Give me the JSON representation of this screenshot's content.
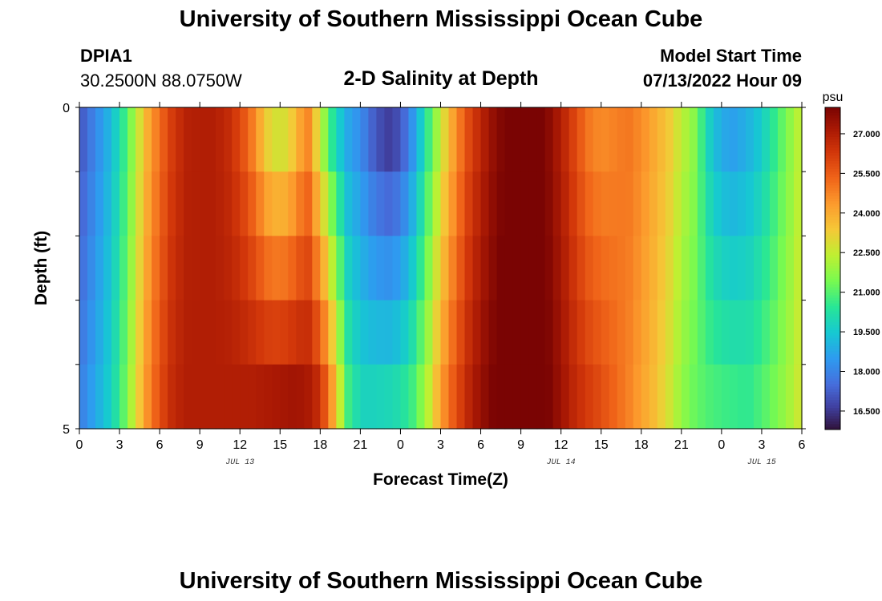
{
  "page": {
    "title": "University of Southern Mississippi Ocean Cube",
    "footer_title": "University of Southern Mississippi Ocean Cube",
    "station_id": "DPIA1",
    "station_coords": "30.2500N  88.0750W",
    "plot_subtitle": "2-D Salinity at Depth",
    "model_start_label": "Model Start Time",
    "model_start_value": "07/13/2022 Hour 09"
  },
  "chart_data": {
    "type": "heatmap",
    "title": "2-D Salinity at Depth",
    "xlabel": "Forecast Time(Z)",
    "ylabel": "Depth (ft)",
    "x_tick_labels": [
      "0",
      "3",
      "6",
      "9",
      "12",
      "15",
      "18",
      "21",
      "0",
      "3",
      "6",
      "9",
      "12",
      "15",
      "18",
      "21",
      "0",
      "3",
      "6"
    ],
    "x_range_hours": [
      0,
      54
    ],
    "day_labels": [
      {
        "label": "JUL 13",
        "hour": 12
      },
      {
        "label": "JUL 14",
        "hour": 36
      },
      {
        "label": "JUL 15",
        "hour": 51
      }
    ],
    "y_tick_labels": [
      {
        "depth": 0,
        "label": "0"
      },
      {
        "depth": 5,
        "label": "5"
      }
    ],
    "y_range": [
      0,
      5
    ],
    "depth_layers": 5,
    "colorbar": {
      "unit": "psu",
      "min": 15.8,
      "max": 28.0,
      "tick_values": [
        16.5,
        18.0,
        19.5,
        21.0,
        22.5,
        24.0,
        25.5,
        27.0
      ],
      "tick_labels": [
        "16.500",
        "18.000",
        "19.500",
        "21.000",
        "22.500",
        "24.000",
        "25.500",
        "27.000"
      ]
    },
    "salinity_profile": {
      "hours": [
        0,
        2,
        3,
        4,
        5,
        6,
        7,
        8,
        9,
        10,
        11,
        12,
        13,
        14,
        15,
        16,
        17,
        18,
        19,
        20,
        21,
        22,
        23,
        24,
        25,
        26,
        27,
        28,
        29,
        30,
        31,
        32,
        33,
        34,
        35,
        36,
        37,
        38,
        39,
        40,
        41,
        42,
        43,
        44,
        45,
        46,
        47,
        48,
        49,
        50,
        51,
        52,
        53,
        54
      ],
      "surface": [
        17.0,
        18.8,
        20.0,
        21.8,
        23.8,
        25.2,
        26.3,
        26.9,
        27.0,
        27.0,
        26.7,
        26.0,
        24.8,
        23.2,
        22.6,
        23.4,
        24.9,
        22.5,
        20.2,
        18.8,
        18.2,
        17.2,
        16.6,
        17.0,
        18.5,
        20.5,
        22.5,
        24.3,
        25.8,
        26.8,
        27.6,
        28.1,
        28.2,
        28.2,
        27.8,
        27.0,
        26.0,
        25.0,
        24.6,
        24.8,
        25.0,
        24.6,
        24.0,
        23.4,
        22.4,
        21.6,
        19.8,
        18.8,
        18.6,
        19.0,
        19.6,
        20.6,
        21.6,
        22.6
      ],
      "deep": [
        17.8,
        19.4,
        20.5,
        22.4,
        24.4,
        25.8,
        26.7,
        27.0,
        27.0,
        27.0,
        27.0,
        27.0,
        27.0,
        27.1,
        27.2,
        27.3,
        27.2,
        26.5,
        24.0,
        20.8,
        19.8,
        19.8,
        19.9,
        20.1,
        20.8,
        22.2,
        24.2,
        25.6,
        26.7,
        27.5,
        28.0,
        28.3,
        28.3,
        28.3,
        28.0,
        27.4,
        26.7,
        26.2,
        25.8,
        25.3,
        24.8,
        24.2,
        23.6,
        22.8,
        21.8,
        21.2,
        20.9,
        20.7,
        20.6,
        20.5,
        20.9,
        21.4,
        22.0,
        22.8
      ]
    }
  }
}
